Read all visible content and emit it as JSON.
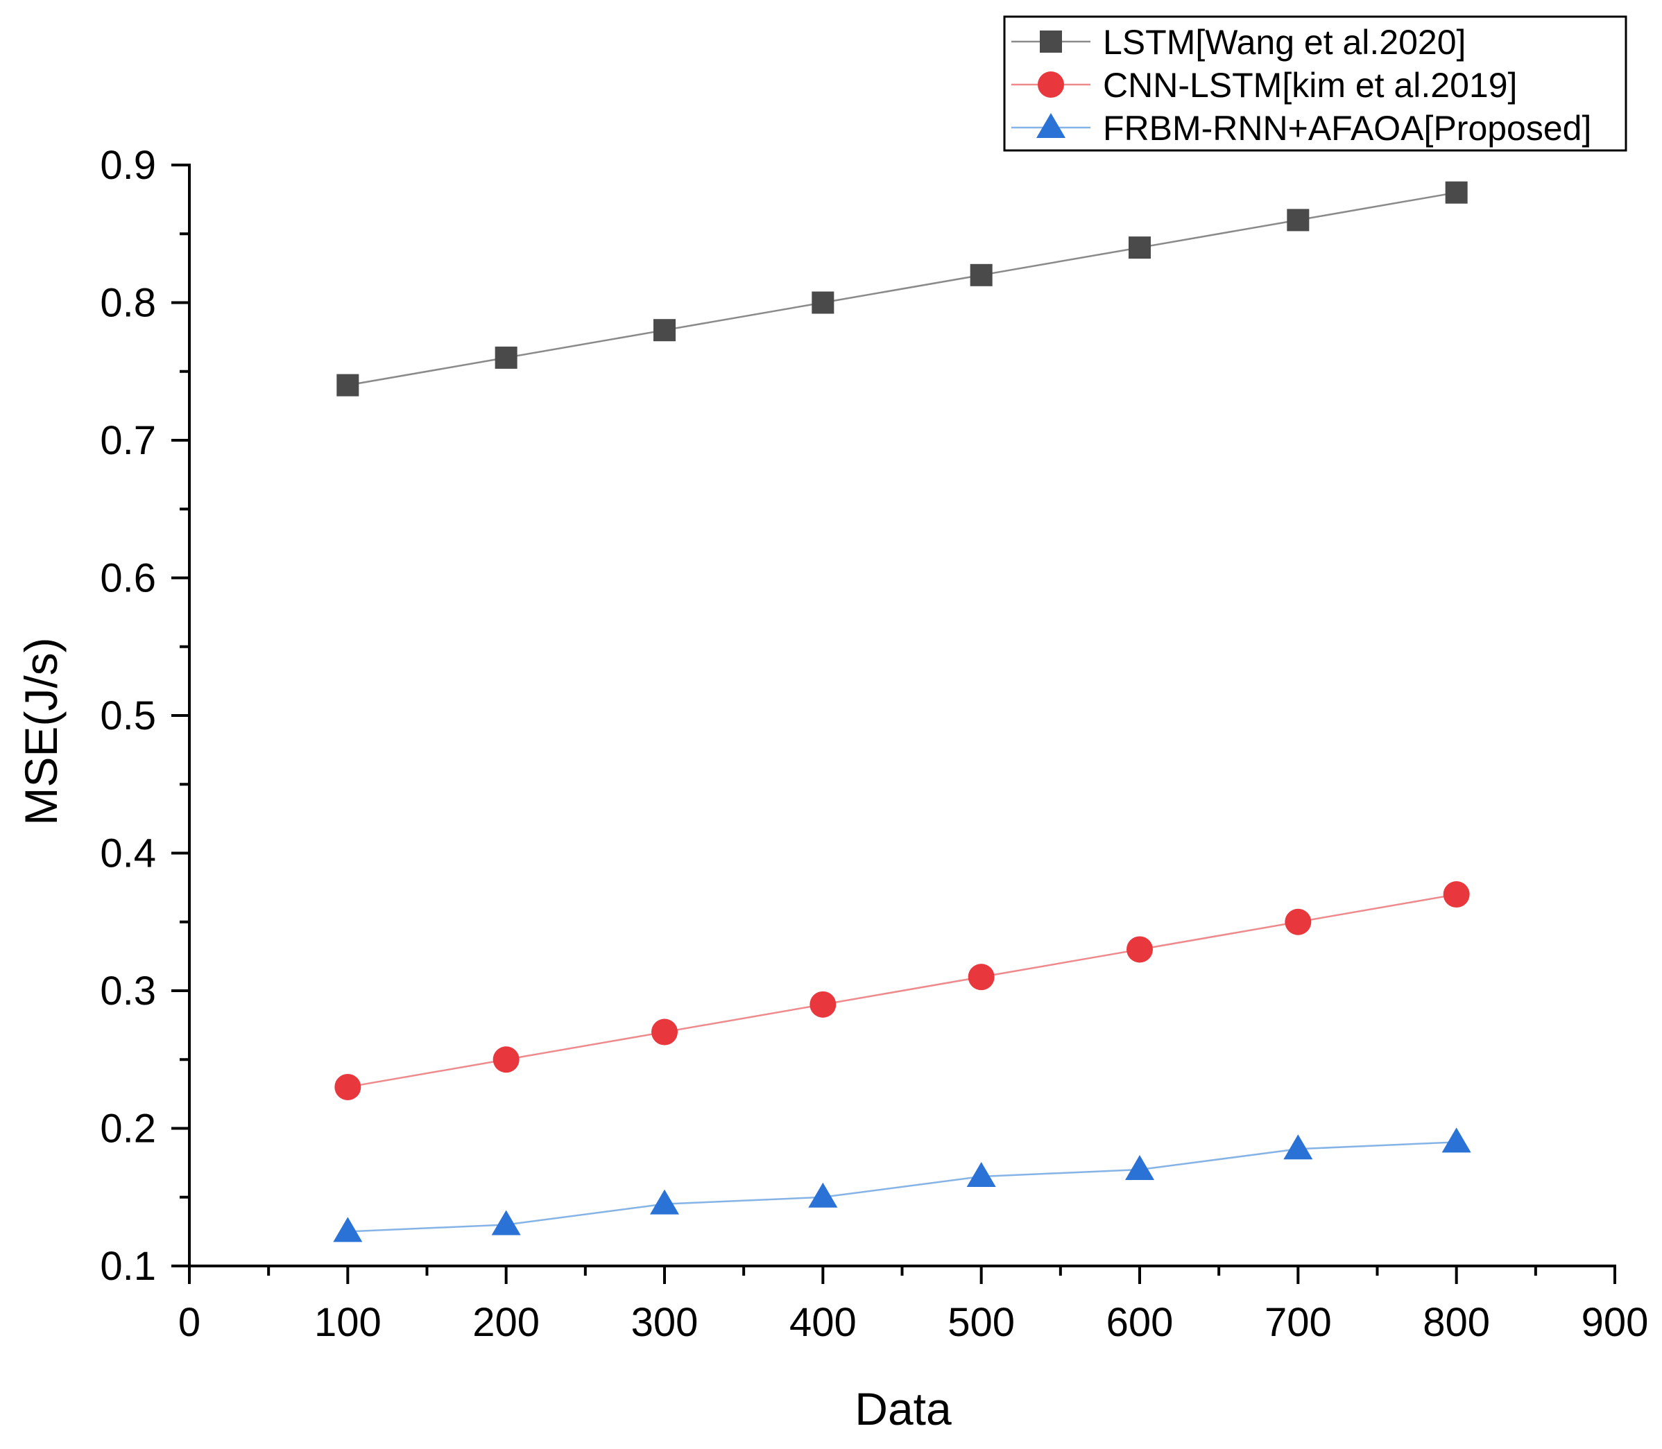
{
  "chart_data": {
    "type": "line",
    "title": "",
    "xlabel": "Data",
    "ylabel": "MSE(J/s)",
    "xlim": [
      0,
      900
    ],
    "ylim": [
      0.1,
      0.9
    ],
    "x_ticks": [
      0,
      100,
      200,
      300,
      400,
      500,
      600,
      700,
      800,
      900
    ],
    "x_tick_labels": [
      "0",
      "100",
      "200",
      "300",
      "400",
      "500",
      "600",
      "700",
      "800",
      "900"
    ],
    "y_ticks": [
      0.1,
      0.2,
      0.3,
      0.4,
      0.5,
      0.6,
      0.7,
      0.8,
      0.9
    ],
    "y_tick_labels": [
      "0.1",
      "0.2",
      "0.3",
      "0.4",
      "0.5",
      "0.6",
      "0.7",
      "0.8",
      "0.9"
    ],
    "x_minor_step": 50,
    "y_minor_step": 0.05,
    "grid": false,
    "legend_position": "top-right",
    "x": [
      100,
      200,
      300,
      400,
      500,
      600,
      700,
      800
    ],
    "series": [
      {
        "name": "LSTM[Wang et al.2020]",
        "marker": "square",
        "color": "#4a4a4a",
        "line_color": "#8a8a8a",
        "values": [
          0.74,
          0.76,
          0.78,
          0.8,
          0.82,
          0.84,
          0.86,
          0.88
        ]
      },
      {
        "name": "CNN-LSTM[kim et al.2019]",
        "marker": "circle",
        "color": "#e8383d",
        "line_color": "#ee8a8c",
        "values": [
          0.23,
          0.25,
          0.27,
          0.29,
          0.31,
          0.33,
          0.35,
          0.37
        ]
      },
      {
        "name": "FRBM-RNN+AFAOA[Proposed]",
        "marker": "triangle",
        "color": "#2a72d6",
        "line_color": "#86b3e6",
        "values": [
          0.125,
          0.13,
          0.145,
          0.15,
          0.165,
          0.17,
          0.185,
          0.19
        ]
      }
    ]
  }
}
